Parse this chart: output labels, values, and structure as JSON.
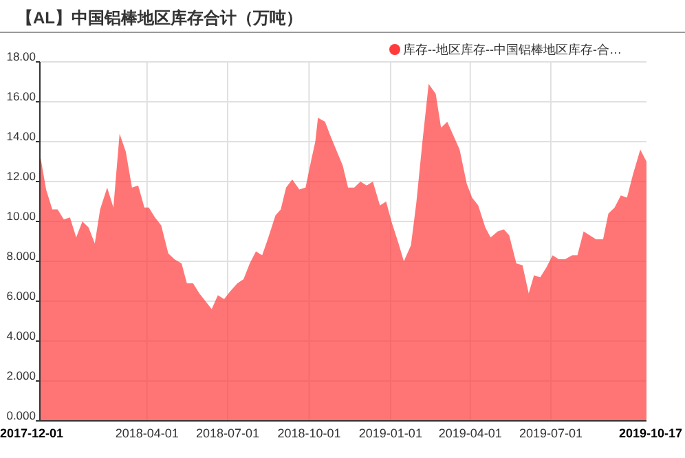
{
  "chart_data": {
    "type": "area",
    "title": "【AL】中国铝棒地区库存合计（万吨）",
    "x": [
      "2017-12-01",
      "2017-12-08",
      "2017-12-15",
      "2017-12-21",
      "2017-12-28",
      "2018-01-04",
      "2018-01-11",
      "2018-01-18",
      "2018-01-25",
      "2018-02-01",
      "2018-02-07",
      "2018-02-15",
      "2018-02-22",
      "2018-03-01",
      "2018-03-08",
      "2018-03-15",
      "2018-03-22",
      "2018-03-29",
      "2018-04-03",
      "2018-04-10",
      "2018-04-17",
      "2018-04-25",
      "2018-05-02",
      "2018-05-10",
      "2018-05-16",
      "2018-05-23",
      "2018-05-30",
      "2018-06-06",
      "2018-06-13",
      "2018-06-20",
      "2018-06-27",
      "2018-07-04",
      "2018-07-12",
      "2018-07-19",
      "2018-07-26",
      "2018-08-02",
      "2018-08-09",
      "2018-08-16",
      "2018-08-24",
      "2018-08-30",
      "2018-09-05",
      "2018-09-12",
      "2018-09-20",
      "2018-09-27",
      "2018-10-04",
      "2018-10-08",
      "2018-10-11",
      "2018-10-19",
      "2018-10-25",
      "2018-11-08",
      "2018-11-14",
      "2018-11-21",
      "2018-11-28",
      "2018-12-05",
      "2018-12-12",
      "2018-12-20",
      "2018-12-27",
      "2019-01-02",
      "2019-01-10",
      "2019-01-16",
      "2019-01-24",
      "2019-01-30",
      "2019-02-06",
      "2019-02-13",
      "2019-02-21",
      "2019-02-27",
      "2019-03-06",
      "2019-03-13",
      "2019-03-20",
      "2019-03-28",
      "2019-04-03",
      "2019-04-10",
      "2019-04-18",
      "2019-04-24",
      "2019-05-02",
      "2019-05-09",
      "2019-05-15",
      "2019-05-23",
      "2019-05-30",
      "2019-06-06",
      "2019-06-12",
      "2019-06-19",
      "2019-06-26",
      "2019-07-03",
      "2019-07-10",
      "2019-07-17",
      "2019-07-25",
      "2019-07-31",
      "2019-08-07",
      "2019-08-14",
      "2019-08-21",
      "2019-08-29",
      "2019-09-04",
      "2019-09-11",
      "2019-09-18",
      "2019-09-25",
      "2019-10-02",
      "2019-10-10",
      "2019-10-17"
    ],
    "series": [
      {
        "name": "库存--地区库存--中国铝棒地区库存-合…",
        "color": "#ff3b3b",
        "values": [
          13.4,
          11.6,
          10.6,
          10.6,
          10.1,
          10.2,
          9.2,
          10.0,
          9.7,
          8.9,
          10.6,
          11.7,
          10.7,
          14.4,
          13.5,
          11.7,
          11.8,
          10.7,
          10.7,
          10.2,
          9.8,
          8.4,
          8.1,
          7.9,
          6.9,
          6.9,
          6.4,
          6.0,
          5.6,
          6.3,
          6.1,
          6.5,
          6.9,
          7.1,
          7.9,
          8.5,
          8.3,
          9.2,
          10.3,
          10.6,
          11.7,
          12.1,
          11.6,
          11.7,
          13.2,
          14.0,
          15.2,
          15.0,
          14.3,
          12.8,
          11.7,
          11.7,
          12.0,
          11.8,
          12.0,
          10.8,
          11.0,
          10.0,
          8.9,
          8.0,
          8.8,
          10.9,
          14.0,
          16.9,
          16.4,
          14.7,
          15.0,
          14.3,
          13.6,
          11.9,
          11.2,
          10.8,
          9.7,
          9.2,
          9.5,
          9.6,
          9.3,
          7.9,
          7.8,
          6.4,
          7.3,
          7.2,
          7.7,
          8.3,
          8.1,
          8.1,
          8.3,
          8.3,
          9.5,
          9.3,
          9.1,
          9.1,
          10.4,
          10.7,
          11.3,
          11.2,
          12.4,
          13.6,
          13.0
        ]
      }
    ],
    "xlim": [
      "2017-12-01",
      "2019-10-17"
    ],
    "xticks": [
      "2017-12-01",
      "2018-04-01",
      "2018-07-01",
      "2018-10-01",
      "2019-01-01",
      "2019-04-01",
      "2019-07-01",
      "2019-10-17"
    ],
    "ylim": [
      0,
      18
    ],
    "yticks": [
      {
        "value": 0,
        "label": "0.000"
      },
      {
        "value": 2,
        "label": "2.000"
      },
      {
        "value": 4,
        "label": "4.000"
      },
      {
        "value": 6,
        "label": "6.000"
      },
      {
        "value": 8,
        "label": "8.000"
      },
      {
        "value": 10,
        "label": "10.00"
      },
      {
        "value": 12,
        "label": "12.00"
      },
      {
        "value": 14,
        "label": "14.00"
      },
      {
        "value": 16,
        "label": "16.00"
      },
      {
        "value": 18,
        "label": "18.00"
      }
    ],
    "grid": true,
    "legend": "top right"
  }
}
